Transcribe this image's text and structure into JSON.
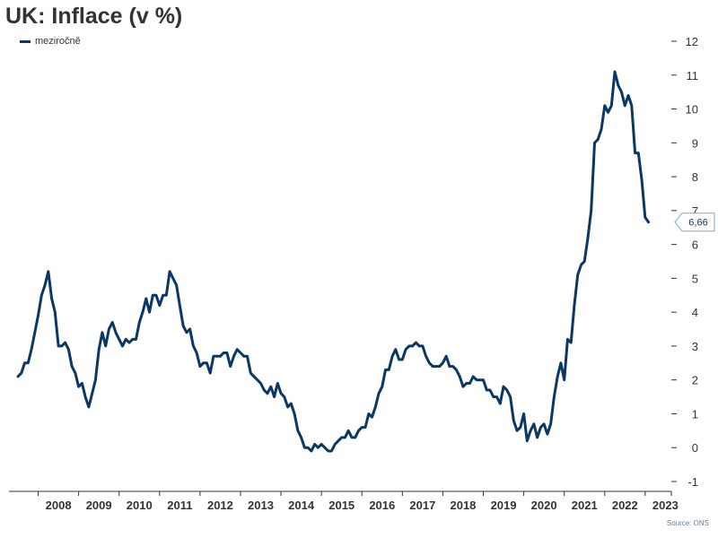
{
  "chart_data": {
    "type": "line",
    "title": "UK: Inflace (v %)",
    "source": "Source: ONS",
    "ylim": [
      -1,
      12
    ],
    "yticks": [
      -1,
      0,
      1,
      2,
      3,
      4,
      5,
      6,
      7,
      8,
      9,
      10,
      11,
      12
    ],
    "y_axis_side": "right",
    "xlim": [
      2007.5,
      2023.58
    ],
    "year_labels": [
      "2008",
      "2009",
      "2010",
      "2011",
      "2012",
      "2013",
      "2014",
      "2015",
      "2016",
      "2017",
      "2018",
      "2019",
      "2020",
      "2021",
      "2022",
      "2023"
    ],
    "legend_position": "top-left",
    "grid": false,
    "last_value_label": "6,66",
    "colors": {
      "series": "#0b3763"
    },
    "series": [
      {
        "name": "meziročně",
        "start": "2007-07",
        "frequency": "monthly",
        "values": [
          2.1,
          2.2,
          2.5,
          2.5,
          2.9,
          3.4,
          3.9,
          4.5,
          4.8,
          5.2,
          4.4,
          4.0,
          3.0,
          3.0,
          3.1,
          2.9,
          2.4,
          2.2,
          1.8,
          1.9,
          1.5,
          1.2,
          1.6,
          2.0,
          2.9,
          3.4,
          3.0,
          3.5,
          3.7,
          3.4,
          3.2,
          3.0,
          3.2,
          3.1,
          3.2,
          3.2,
          3.7,
          4.0,
          4.4,
          4.0,
          4.5,
          4.5,
          4.2,
          4.5,
          4.5,
          5.2,
          5.0,
          4.8,
          4.2,
          3.6,
          3.4,
          3.5,
          3.0,
          2.8,
          2.4,
          2.5,
          2.5,
          2.2,
          2.7,
          2.7,
          2.7,
          2.8,
          2.8,
          2.4,
          2.7,
          2.9,
          2.8,
          2.7,
          2.7,
          2.2,
          2.1,
          2.0,
          1.9,
          1.7,
          1.6,
          1.8,
          1.5,
          1.9,
          1.6,
          1.5,
          1.2,
          1.3,
          1.0,
          0.5,
          0.3,
          0.0,
          0.0,
          -0.1,
          0.1,
          0.0,
          0.1,
          0.0,
          -0.1,
          -0.1,
          0.1,
          0.2,
          0.3,
          0.3,
          0.5,
          0.3,
          0.3,
          0.5,
          0.6,
          0.6,
          1.0,
          0.9,
          1.2,
          1.6,
          1.8,
          2.3,
          2.3,
          2.7,
          2.9,
          2.6,
          2.6,
          2.9,
          3.0,
          3.0,
          3.1,
          3.0,
          3.0,
          2.7,
          2.5,
          2.4,
          2.4,
          2.4,
          2.5,
          2.7,
          2.4,
          2.4,
          2.3,
          2.1,
          1.8,
          1.9,
          1.9,
          2.1,
          2.0,
          2.0,
          2.0,
          1.7,
          1.7,
          1.5,
          1.5,
          1.3,
          1.8,
          1.7,
          1.5,
          0.8,
          0.5,
          0.6,
          1.0,
          0.2,
          0.5,
          0.7,
          0.3,
          0.6,
          0.7,
          0.4,
          0.7,
          1.5,
          2.1,
          2.5,
          2.0,
          3.2,
          3.1,
          4.2,
          5.1,
          5.4,
          5.5,
          6.2,
          7.0,
          9.0,
          9.1,
          9.4,
          10.1,
          9.9,
          10.1,
          11.1,
          10.7,
          10.5,
          10.1,
          10.4,
          10.1,
          8.7,
          8.7,
          7.9,
          6.8,
          6.66
        ]
      }
    ]
  }
}
